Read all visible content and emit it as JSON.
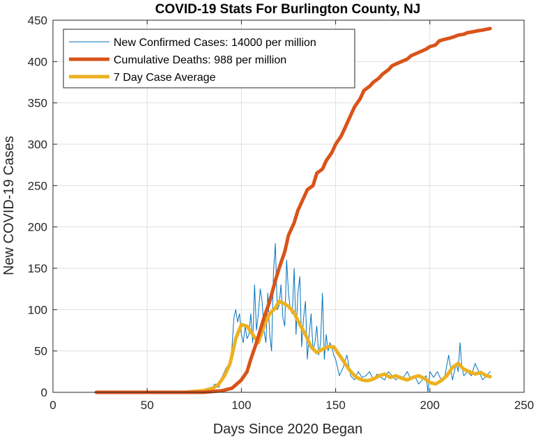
{
  "chart_data": {
    "type": "line",
    "title": "COVID-19 Stats For Burlington County, NJ",
    "xlabel": "Days Since 2020 Began",
    "ylabel": "New COVID-19 Cases",
    "xlim": [
      0,
      250
    ],
    "ylim": [
      0,
      450
    ],
    "xticks": [
      0,
      50,
      100,
      150,
      200,
      250
    ],
    "yticks": [
      0,
      50,
      100,
      150,
      200,
      250,
      300,
      350,
      400,
      450
    ],
    "grid": true,
    "legend_position": "top-left",
    "series": [
      {
        "name": "New Confirmed Cases: 14000 per million",
        "color": "#0072BD",
        "x": [
          23,
          60,
          70,
          75,
          78,
          80,
          82,
          84,
          86,
          88,
          90,
          92,
          94,
          95,
          96,
          97,
          98,
          99,
          100,
          101,
          102,
          103,
          104,
          105,
          106,
          107,
          108,
          109,
          110,
          111,
          112,
          113,
          114,
          115,
          116,
          117,
          118,
          119,
          120,
          121,
          122,
          123,
          124,
          125,
          126,
          127,
          128,
          129,
          130,
          131,
          132,
          133,
          134,
          135,
          136,
          137,
          138,
          139,
          140,
          141,
          142,
          143,
          144,
          145,
          146,
          147,
          148,
          149,
          150,
          152,
          154,
          156,
          158,
          160,
          162,
          164,
          166,
          168,
          170,
          172,
          174,
          176,
          178,
          180,
          182,
          184,
          186,
          188,
          190,
          192,
          194,
          196,
          198,
          199,
          200,
          202,
          204,
          206,
          208,
          210,
          212,
          214,
          215,
          216,
          217,
          218,
          220,
          222,
          224,
          226,
          228,
          230,
          232
        ],
        "y": [
          0,
          0,
          0,
          1,
          3,
          2,
          5,
          4,
          10,
          6,
          20,
          30,
          35,
          55,
          90,
          100,
          85,
          95,
          70,
          60,
          80,
          65,
          70,
          95,
          60,
          130,
          75,
          95,
          125,
          110,
          75,
          60,
          120,
          70,
          50,
          145,
          180,
          100,
          105,
          130,
          90,
          80,
          160,
          120,
          100,
          95,
          150,
          70,
          120,
          140,
          55,
          90,
          110,
          40,
          70,
          95,
          50,
          60,
          80,
          45,
          60,
          120,
          40,
          70,
          50,
          60,
          55,
          45,
          40,
          20,
          30,
          45,
          20,
          15,
          25,
          18,
          20,
          25,
          15,
          22,
          18,
          15,
          25,
          20,
          15,
          20,
          18,
          25,
          15,
          20,
          10,
          15,
          20,
          0,
          25,
          18,
          25,
          15,
          20,
          45,
          15,
          35,
          25,
          60,
          30,
          20,
          25,
          20,
          35,
          25,
          15,
          20,
          25
        ]
      },
      {
        "name": "Cumulative Deaths: 988 per million",
        "color": "#D95319",
        "x": [
          23,
          60,
          75,
          80,
          85,
          90,
          95,
          100,
          103,
          105,
          108,
          110,
          112,
          115,
          118,
          120,
          123,
          125,
          128,
          130,
          133,
          135,
          138,
          140,
          143,
          145,
          148,
          150,
          153,
          155,
          158,
          160,
          163,
          165,
          168,
          170,
          173,
          175,
          178,
          180,
          183,
          185,
          188,
          190,
          193,
          195,
          198,
          200,
          203,
          205,
          208,
          210,
          213,
          215,
          218,
          220,
          223,
          225,
          228,
          230,
          232
        ],
        "y": [
          0,
          0,
          0,
          0,
          1,
          2,
          5,
          15,
          25,
          40,
          60,
          75,
          90,
          110,
          135,
          150,
          170,
          190,
          205,
          220,
          235,
          245,
          250,
          265,
          270,
          280,
          290,
          300,
          310,
          320,
          335,
          345,
          355,
          365,
          370,
          375,
          380,
          385,
          390,
          395,
          398,
          400,
          403,
          407,
          410,
          412,
          415,
          418,
          420,
          425,
          427,
          428,
          430,
          432,
          433,
          435,
          436,
          437,
          438,
          439,
          440
        ]
      },
      {
        "name": "7 Day Case Average",
        "color": "#EDB120",
        "x": [
          23,
          60,
          70,
          75,
          80,
          85,
          88,
          91,
          94,
          97,
          100,
          103,
          106,
          109,
          112,
          115,
          118,
          120,
          122,
          125,
          128,
          131,
          134,
          137,
          140,
          143,
          146,
          149,
          152,
          155,
          158,
          161,
          164,
          167,
          170,
          173,
          176,
          179,
          182,
          185,
          188,
          191,
          194,
          197,
          200,
          203,
          206,
          209,
          212,
          215,
          218,
          221,
          224,
          227,
          230,
          232
        ],
        "y": [
          0,
          0,
          0,
          1,
          2,
          5,
          10,
          20,
          35,
          65,
          82,
          80,
          70,
          60,
          80,
          95,
          102,
          110,
          108,
          104,
          96,
          82,
          70,
          55,
          48,
          52,
          55,
          55,
          45,
          35,
          25,
          18,
          15,
          14,
          16,
          20,
          22,
          18,
          20,
          17,
          15,
          18,
          20,
          17,
          12,
          10,
          14,
          20,
          30,
          35,
          28,
          25,
          22,
          24,
          20,
          19
        ]
      }
    ]
  }
}
